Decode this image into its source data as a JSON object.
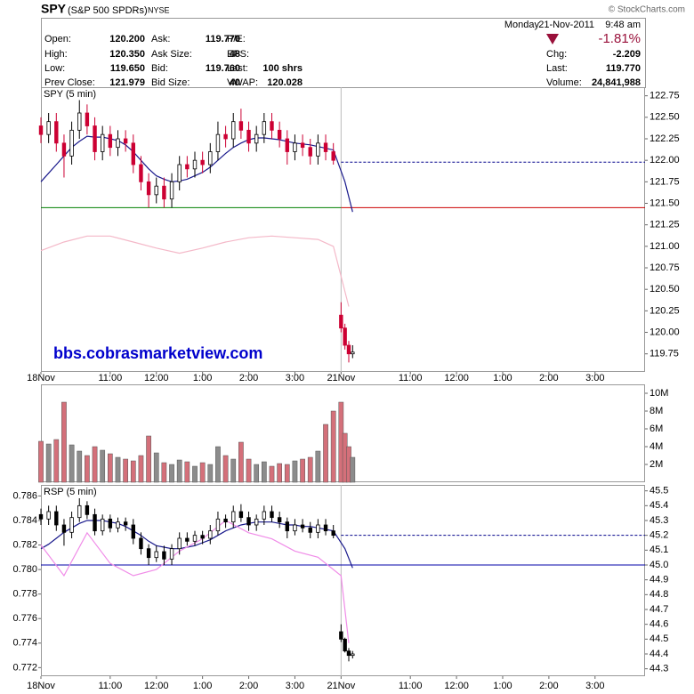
{
  "header": {
    "symbol": "SPY",
    "name": "(S&P 500 SPDRs)",
    "exchange": "NYSE",
    "copyright": "© StockCharts.com",
    "day": "Monday",
    "date": "21-Nov-2011",
    "time": "9:48 am",
    "change_pct": "-1.81%",
    "quote": [
      [
        {
          "label": "Open:",
          "value": "120.200"
        },
        {
          "label": "Ask:",
          "value": "119.770"
        },
        {
          "label": "P/E:"
        }
      ],
      [
        {
          "label": "High:",
          "value": "120.350"
        },
        {
          "label": "Ask Size:",
          "value": "48"
        },
        {
          "label": "EPS:"
        }
      ],
      [
        {
          "label": "Low:",
          "value": "119.650"
        },
        {
          "label": "Bid:",
          "value": "119.760"
        },
        {
          "label": "Last:",
          "value": "100 shrs"
        }
      ],
      [
        {
          "label": "Prev Close:",
          "value": "121.979"
        },
        {
          "label": "Bid Size:",
          "value": "40"
        },
        {
          "label": "VWAP:",
          "value": "120.028"
        }
      ]
    ],
    "right_quote": [
      {
        "label": "Chg:",
        "value": "-2.209"
      },
      {
        "label": "Last:",
        "value": "119.770"
      },
      {
        "label": "Volume:",
        "value": "24,841,988"
      }
    ]
  },
  "chart_data": [
    {
      "type": "candlestick",
      "title": "SPY (5 min)",
      "watermark": "bbs.cobrasmarketview.com",
      "x": [
        0,
        2,
        4,
        6,
        8,
        10,
        12,
        14,
        16,
        18,
        20,
        22,
        24,
        26,
        28,
        30,
        32,
        34,
        36,
        38,
        40,
        42,
        44,
        46,
        48,
        50,
        52,
        54,
        56,
        58,
        60,
        62,
        64,
        66,
        68,
        70,
        72,
        74,
        76,
        78,
        79,
        80,
        81
      ],
      "open": [
        122.4,
        122.3,
        122.45,
        122.2,
        122.05,
        122.35,
        122.55,
        122.4,
        122.1,
        122.3,
        122.15,
        122.25,
        122.2,
        121.95,
        121.75,
        121.6,
        121.7,
        121.55,
        121.75,
        121.95,
        121.9,
        122.0,
        121.95,
        122.1,
        122.3,
        122.25,
        122.45,
        122.35,
        122.2,
        122.3,
        122.45,
        122.35,
        122.25,
        122.1,
        122.2,
        122.15,
        122.05,
        122.2,
        122.1,
        120.2,
        120.05,
        119.85,
        119.75
      ],
      "high": [
        122.5,
        122.55,
        122.55,
        122.3,
        122.45,
        122.7,
        122.65,
        122.5,
        122.4,
        122.4,
        122.35,
        122.35,
        122.3,
        122.05,
        121.85,
        121.8,
        121.8,
        121.85,
        122.05,
        122.05,
        122.1,
        122.1,
        122.2,
        122.45,
        122.4,
        122.55,
        122.6,
        122.45,
        122.4,
        122.55,
        122.55,
        122.45,
        122.35,
        122.3,
        122.3,
        122.25,
        122.3,
        122.3,
        122.2,
        120.35,
        120.1,
        119.9,
        119.85
      ],
      "low": [
        122.2,
        122.2,
        122.1,
        121.8,
        121.95,
        122.25,
        122.3,
        122.0,
        122.0,
        122.05,
        122.05,
        122.1,
        121.85,
        121.65,
        121.45,
        121.5,
        121.45,
        121.45,
        121.65,
        121.8,
        121.8,
        121.85,
        121.85,
        122.0,
        122.15,
        122.15,
        122.25,
        122.1,
        122.1,
        122.2,
        122.25,
        122.15,
        121.95,
        122.0,
        122.05,
        121.95,
        121.95,
        122.0,
        121.95,
        120.0,
        119.8,
        119.65,
        119.7
      ],
      "close": [
        122.3,
        122.45,
        122.2,
        122.05,
        122.35,
        122.55,
        122.4,
        122.1,
        122.3,
        122.15,
        122.25,
        122.2,
        121.95,
        121.75,
        121.6,
        121.7,
        121.55,
        121.75,
        121.95,
        121.9,
        122.0,
        121.95,
        122.1,
        122.3,
        122.25,
        122.45,
        122.35,
        122.2,
        122.3,
        122.45,
        122.35,
        122.25,
        122.1,
        122.2,
        122.15,
        122.05,
        122.2,
        122.1,
        122.0,
        120.05,
        119.85,
        119.75,
        119.77
      ],
      "up_color": "#000000",
      "down_color": "#cc0033",
      "overlays": [
        {
          "color": "#1a1a8c",
          "x": [
            0,
            2,
            4,
            6,
            8,
            10,
            12,
            14,
            16,
            18,
            20,
            22,
            24,
            26,
            28,
            30,
            32,
            34,
            36,
            38,
            40,
            42,
            44,
            46,
            48,
            50,
            52,
            54,
            56,
            58,
            60,
            62,
            64,
            66,
            68,
            70,
            72,
            74,
            76,
            79,
            81
          ],
          "values": [
            121.75,
            121.85,
            121.95,
            122.05,
            122.15,
            122.22,
            122.28,
            122.27,
            122.27,
            122.25,
            122.23,
            122.18,
            122.1,
            122.0,
            121.9,
            121.82,
            121.78,
            121.75,
            121.76,
            121.78,
            121.82,
            121.86,
            121.92,
            122.0,
            122.08,
            122.15,
            122.2,
            122.24,
            122.26,
            122.26,
            122.25,
            122.24,
            122.22,
            122.2,
            122.19,
            122.18,
            122.16,
            122.14,
            122.12,
            121.75,
            121.4
          ]
        },
        {
          "color": "#f4b8c8",
          "x": [
            0,
            6,
            12,
            18,
            24,
            30,
            36,
            42,
            48,
            54,
            60,
            66,
            72,
            76,
            80
          ],
          "values": [
            120.95,
            121.05,
            121.12,
            121.12,
            121.05,
            120.98,
            120.92,
            120.98,
            121.05,
            121.1,
            121.12,
            121.1,
            121.08,
            121.0,
            120.3
          ]
        }
      ],
      "reference_lines": [
        {
          "value": 121.979,
          "color": "#00008b",
          "dashed": true,
          "from": 78
        },
        {
          "value": 121.45,
          "color": "#008000",
          "to": 78
        },
        {
          "value": 121.45,
          "color": "#cc0000",
          "from": 78
        }
      ],
      "separators": [
        78
      ],
      "xlim": [
        0,
        157
      ],
      "xticks": [
        {
          "value": 0,
          "label": "18Nov"
        },
        {
          "value": 18,
          "label": "11:00"
        },
        {
          "value": 30,
          "label": "12:00"
        },
        {
          "value": 42,
          "label": "1:00"
        },
        {
          "value": 54,
          "label": "2:00"
        },
        {
          "value": 66,
          "label": "3:00"
        },
        {
          "value": 78,
          "label": "21Nov"
        },
        {
          "value": 96,
          "label": "11:00"
        },
        {
          "value": 108,
          "label": "12:00"
        },
        {
          "value": 120,
          "label": "1:00"
        },
        {
          "value": 132,
          "label": "2:00"
        },
        {
          "value": 144,
          "label": "3:00"
        }
      ],
      "ylim": [
        119.54,
        122.85
      ],
      "yticks": [
        119.75,
        {
          "value": 120,
          "label": "120.00"
        },
        120.25,
        {
          "value": 120.5,
          "label": "120.50"
        },
        120.75,
        {
          "value": 121,
          "label": "121.00"
        },
        121.25,
        {
          "value": 121.5,
          "label": "121.50"
        },
        121.75,
        {
          "value": 122,
          "label": "122.00"
        },
        122.25,
        {
          "value": 122.5,
          "label": "122.50"
        },
        122.75
      ]
    },
    {
      "type": "bar",
      "x": [
        0,
        2,
        4,
        6,
        8,
        10,
        12,
        14,
        16,
        18,
        20,
        22,
        24,
        26,
        28,
        30,
        32,
        34,
        36,
        38,
        40,
        42,
        44,
        46,
        48,
        50,
        52,
        54,
        56,
        58,
        60,
        62,
        64,
        66,
        68,
        70,
        72,
        74,
        76,
        78,
        79,
        80,
        81
      ],
      "values": [
        4.6,
        4.3,
        4.8,
        9,
        4.2,
        3.5,
        3,
        4,
        3.6,
        3.2,
        2.8,
        2.6,
        2.4,
        3,
        5.2,
        3.3,
        2.2,
        2,
        2.5,
        2.3,
        1.8,
        2.2,
        2,
        4,
        3,
        2.6,
        4.5,
        2.6,
        2,
        2.3,
        1.8,
        2.1,
        2,
        2.4,
        2.6,
        2.8,
        3.5,
        6.5,
        8,
        9,
        5.5,
        4,
        2.8
      ],
      "up_color": "#8c8c8c",
      "down_color": "#d4707a",
      "ylim": [
        0,
        11
      ],
      "yticks": [
        {
          "value": 2,
          "label": "2M"
        },
        {
          "value": 4,
          "label": "4M"
        },
        {
          "value": 6,
          "label": "6M"
        },
        {
          "value": 8,
          "label": "8M"
        },
        {
          "value": 10,
          "label": "10M"
        }
      ]
    },
    {
      "type": "candlestick",
      "title": "RSP (5 min)",
      "axis": "y2",
      "x": [
        0,
        2,
        4,
        6,
        8,
        10,
        12,
        14,
        16,
        18,
        20,
        22,
        24,
        26,
        28,
        30,
        32,
        34,
        36,
        38,
        40,
        42,
        44,
        46,
        48,
        50,
        52,
        54,
        56,
        58,
        60,
        62,
        64,
        66,
        68,
        70,
        72,
        74,
        76,
        78,
        79,
        80,
        81
      ],
      "open": [
        45.34,
        45.31,
        45.36,
        45.27,
        45.22,
        45.32,
        45.4,
        45.34,
        45.23,
        45.31,
        45.25,
        45.29,
        45.27,
        45.18,
        45.11,
        45.05,
        45.09,
        45.04,
        45.11,
        45.18,
        45.16,
        45.2,
        45.18,
        45.23,
        45.31,
        45.29,
        45.36,
        45.32,
        45.27,
        45.31,
        45.36,
        45.32,
        45.29,
        45.23,
        45.27,
        45.25,
        45.22,
        45.27,
        45.23,
        44.55,
        44.5,
        44.42,
        44.39
      ],
      "high": [
        45.38,
        45.4,
        45.4,
        45.31,
        45.36,
        45.45,
        45.43,
        45.38,
        45.34,
        45.34,
        45.32,
        45.32,
        45.31,
        45.22,
        45.14,
        45.13,
        45.13,
        45.14,
        45.22,
        45.22,
        45.23,
        45.23,
        45.27,
        45.36,
        45.34,
        45.4,
        45.41,
        45.36,
        45.34,
        45.4,
        45.4,
        45.36,
        45.32,
        45.31,
        45.31,
        45.29,
        45.31,
        45.31,
        45.27,
        44.6,
        44.51,
        44.44,
        44.42
      ],
      "low": [
        45.27,
        45.27,
        45.23,
        45.13,
        45.18,
        45.29,
        45.31,
        45.2,
        45.2,
        45.22,
        45.22,
        45.23,
        45.14,
        45.07,
        45.0,
        45.02,
        45.0,
        45.0,
        45.07,
        45.13,
        45.13,
        45.14,
        45.14,
        45.2,
        45.25,
        45.25,
        45.29,
        45.23,
        45.23,
        45.27,
        45.29,
        45.25,
        45.18,
        45.2,
        45.22,
        45.18,
        45.18,
        45.2,
        45.18,
        44.48,
        44.41,
        44.35,
        44.37
      ],
      "close": [
        45.31,
        45.36,
        45.27,
        45.22,
        45.32,
        45.4,
        45.34,
        45.23,
        45.31,
        45.25,
        45.29,
        45.27,
        45.18,
        45.11,
        45.05,
        45.09,
        45.04,
        45.11,
        45.18,
        45.16,
        45.2,
        45.18,
        45.23,
        45.31,
        45.29,
        45.36,
        45.32,
        45.27,
        45.31,
        45.36,
        45.32,
        45.29,
        45.23,
        45.27,
        45.25,
        45.22,
        45.27,
        45.23,
        45.2,
        44.5,
        44.42,
        44.39,
        44.4
      ],
      "up_color": "#000000",
      "down_color": "#000000",
      "overlays": [
        {
          "color": "#1a1a8c",
          "axis": "y2",
          "x": [
            0,
            2,
            4,
            6,
            8,
            10,
            12,
            14,
            16,
            18,
            20,
            22,
            24,
            26,
            28,
            30,
            32,
            34,
            36,
            38,
            40,
            42,
            44,
            46,
            48,
            50,
            52,
            54,
            56,
            58,
            60,
            62,
            64,
            66,
            68,
            70,
            72,
            74,
            76,
            79,
            81
          ],
          "values": [
            45.11,
            45.14,
            45.18,
            45.22,
            45.25,
            45.28,
            45.3,
            45.3,
            45.3,
            45.29,
            45.28,
            45.26,
            45.23,
            45.2,
            45.16,
            45.13,
            45.12,
            45.11,
            45.11,
            45.12,
            45.13,
            45.15,
            45.17,
            45.2,
            45.23,
            45.25,
            45.27,
            45.28,
            45.29,
            45.29,
            45.29,
            45.28,
            45.27,
            45.27,
            45.26,
            45.26,
            45.25,
            45.24,
            45.23,
            45.11,
            44.98
          ]
        },
        {
          "color": "#f08ce8",
          "x": [
            0,
            6,
            12,
            18,
            24,
            30,
            36,
            42,
            48,
            54,
            60,
            66,
            72,
            76,
            78,
            80
          ],
          "values": [
            0.782,
            0.7795,
            0.783,
            0.7805,
            0.7795,
            0.78,
            0.7815,
            0.7825,
            0.784,
            0.783,
            0.7825,
            0.7815,
            0.781,
            0.78,
            0.7795,
            0.774
          ]
        }
      ],
      "reference_lines": [
        {
          "value": 45.2,
          "axis": "y2",
          "color": "#00008b",
          "dashed": true,
          "from": 78
        },
        {
          "value": 45,
          "axis": "y2",
          "color": "#0000aa"
        }
      ],
      "separators": [
        78
      ],
      "xlim": [
        0,
        157
      ],
      "xticks": [
        {
          "value": 0,
          "label": "18Nov"
        },
        {
          "value": 18,
          "label": "11:00"
        },
        {
          "value": 30,
          "label": "12:00"
        },
        {
          "value": 42,
          "label": "1:00"
        },
        {
          "value": 54,
          "label": "2:00"
        },
        {
          "value": 66,
          "label": "3:00"
        },
        {
          "value": 78,
          "label": "21Nov"
        },
        {
          "value": 96,
          "label": "11:00"
        },
        {
          "value": 108,
          "label": "12:00"
        },
        {
          "value": 120,
          "label": "1:00"
        },
        {
          "value": 132,
          "label": "2:00"
        },
        {
          "value": 144,
          "label": "3:00"
        }
      ],
      "ylim": [
        0.7713,
        0.7869
      ],
      "yticks": [
        0.772,
        0.774,
        0.776,
        0.778,
        {
          "value": 0.78,
          "label": "0.780"
        },
        0.782,
        0.784,
        0.786
      ],
      "y2lim": [
        44.25,
        45.54
      ],
      "y2ticks": [
        44.3,
        44.4,
        44.5,
        44.6,
        44.7,
        44.8,
        44.9,
        {
          "value": 45,
          "label": "45.0"
        },
        45.1,
        45.2,
        45.3,
        45.4,
        45.5
      ]
    }
  ]
}
